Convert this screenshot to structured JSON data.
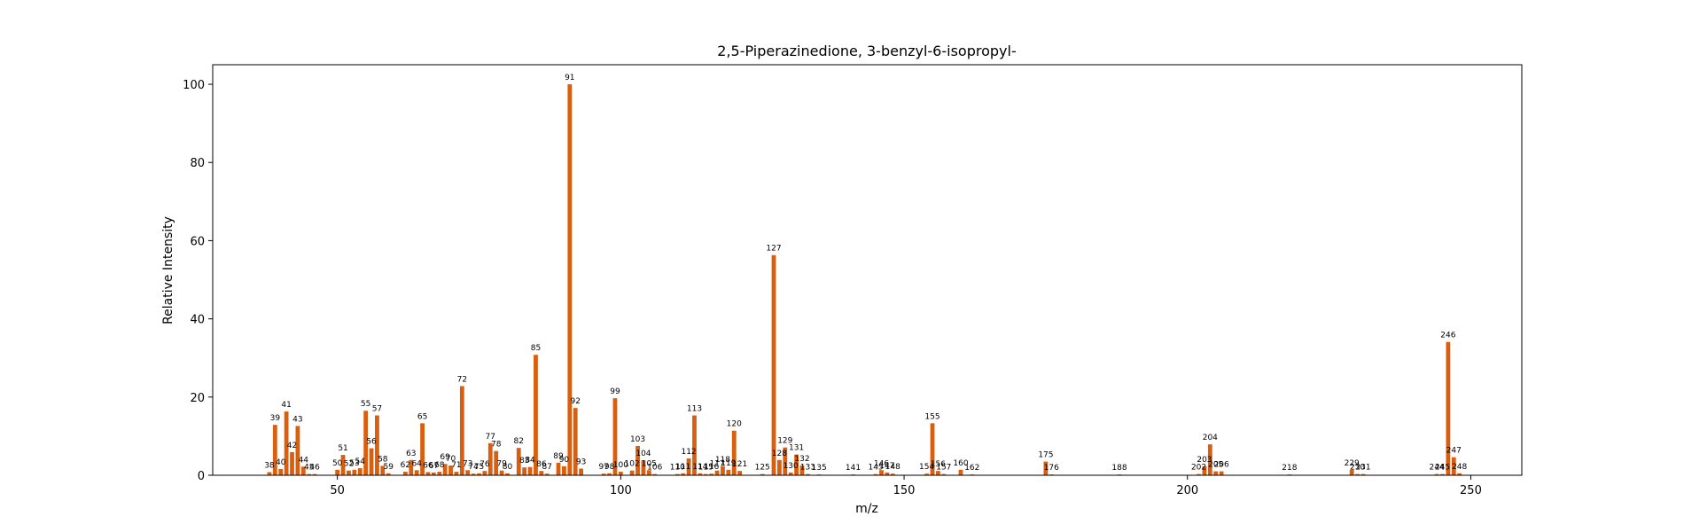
{
  "chart_data": {
    "type": "bar",
    "title": "2,5-Piperazinedione, 3-benzyl-6-isopropyl-",
    "xlabel": "m/z",
    "ylabel": "Relative Intensity",
    "xlim": [
      28,
      259
    ],
    "ylim": [
      0,
      105
    ],
    "xticks": [
      50,
      100,
      150,
      200,
      250
    ],
    "yticks": [
      0,
      20,
      40,
      60,
      80,
      100
    ],
    "grid": false,
    "color": "#d95f0e",
    "x": [
      38,
      39,
      40,
      41,
      42,
      43,
      44,
      45,
      46,
      50,
      51,
      52,
      53,
      54,
      55,
      56,
      57,
      58,
      59,
      62,
      63,
      64,
      65,
      66,
      67,
      68,
      69,
      70,
      71,
      72,
      73,
      74,
      75,
      76,
      77,
      78,
      79,
      80,
      82,
      83,
      84,
      85,
      86,
      87,
      89,
      90,
      91,
      92,
      93,
      97,
      98,
      99,
      100,
      102,
      103,
      104,
      105,
      106,
      110,
      111,
      112,
      113,
      114,
      115,
      116,
      117,
      118,
      119,
      120,
      121,
      125,
      127,
      128,
      129,
      130,
      131,
      132,
      133,
      135,
      141,
      145,
      146,
      147,
      148,
      154,
      155,
      156,
      157,
      160,
      162,
      175,
      176,
      188,
      202,
      203,
      204,
      205,
      206,
      218,
      229,
      230,
      231,
      244,
      245,
      246,
      247,
      248
    ],
    "values": [
      0.8,
      12.9,
      1.6,
      16.3,
      5.9,
      12.6,
      2.2,
      0.3,
      0.3,
      1.4,
      5.2,
      1.2,
      1.4,
      1.8,
      16.5,
      6.9,
      15.3,
      2.4,
      0.5,
      0.9,
      3.9,
      1.3,
      13.3,
      0.8,
      0.7,
      0.9,
      2.9,
      2.5,
      0.9,
      22.8,
      1.3,
      0.4,
      0.5,
      1.1,
      8.2,
      6.2,
      1.2,
      0.5,
      7,
      2,
      2.1,
      30.8,
      1.1,
      0.4,
      3.2,
      2.3,
      100,
      17.2,
      1.7,
      0.4,
      0.5,
      19.7,
      0.9,
      1.2,
      7.5,
      3.8,
      1.3,
      0.3,
      0.3,
      0.5,
      4.3,
      15.3,
      0.5,
      0.3,
      0.4,
      1.2,
      2.3,
      1.4,
      11.4,
      1.1,
      0.3,
      56.3,
      3.9,
      7.1,
      0.7,
      5.3,
      2.5,
      0.3,
      0.2,
      0.2,
      0.3,
      1.3,
      0.7,
      0.4,
      0.4,
      13.3,
      1.1,
      0.3,
      1.4,
      0.2,
      3.5,
      0.2,
      0.2,
      0.3,
      2.3,
      7.9,
      1,
      1,
      0.2,
      1.4,
      0.3,
      0.3,
      0.3,
      0.3,
      34.1,
      4.6,
      0.5
    ],
    "labels": [
      "38",
      "39",
      "40",
      "41",
      "42",
      "43",
      "44",
      "45",
      "46",
      "50",
      "51",
      "52",
      "53",
      "54",
      "55",
      "56",
      "57",
      "58",
      "59",
      "62",
      "63",
      "64",
      "65",
      "66",
      "67",
      "68",
      "69",
      "70",
      "71",
      "72",
      "73",
      "74",
      "75",
      "76",
      "77",
      "78",
      "79",
      "80",
      "82",
      "83",
      "84",
      "85",
      "86",
      "87",
      "89",
      "90",
      "91",
      "92",
      "93",
      "97",
      "98",
      "99",
      "100",
      "102",
      "103",
      "104",
      "105",
      "106",
      "110",
      "111",
      "112",
      "113",
      "114",
      "115",
      "116",
      "117",
      "118",
      "119",
      "120",
      "121",
      "125",
      "127",
      "128",
      "129",
      "130",
      "131",
      "132",
      "133",
      "135",
      "141",
      "145",
      "146",
      "147",
      "148",
      "154",
      "155",
      "156",
      "157",
      "160",
      "162",
      "175",
      "176",
      "188",
      "202",
      "203",
      "204",
      "205",
      "206",
      "218",
      "229",
      "230",
      "231",
      "244",
      "245",
      "246",
      "247",
      "248"
    ]
  }
}
